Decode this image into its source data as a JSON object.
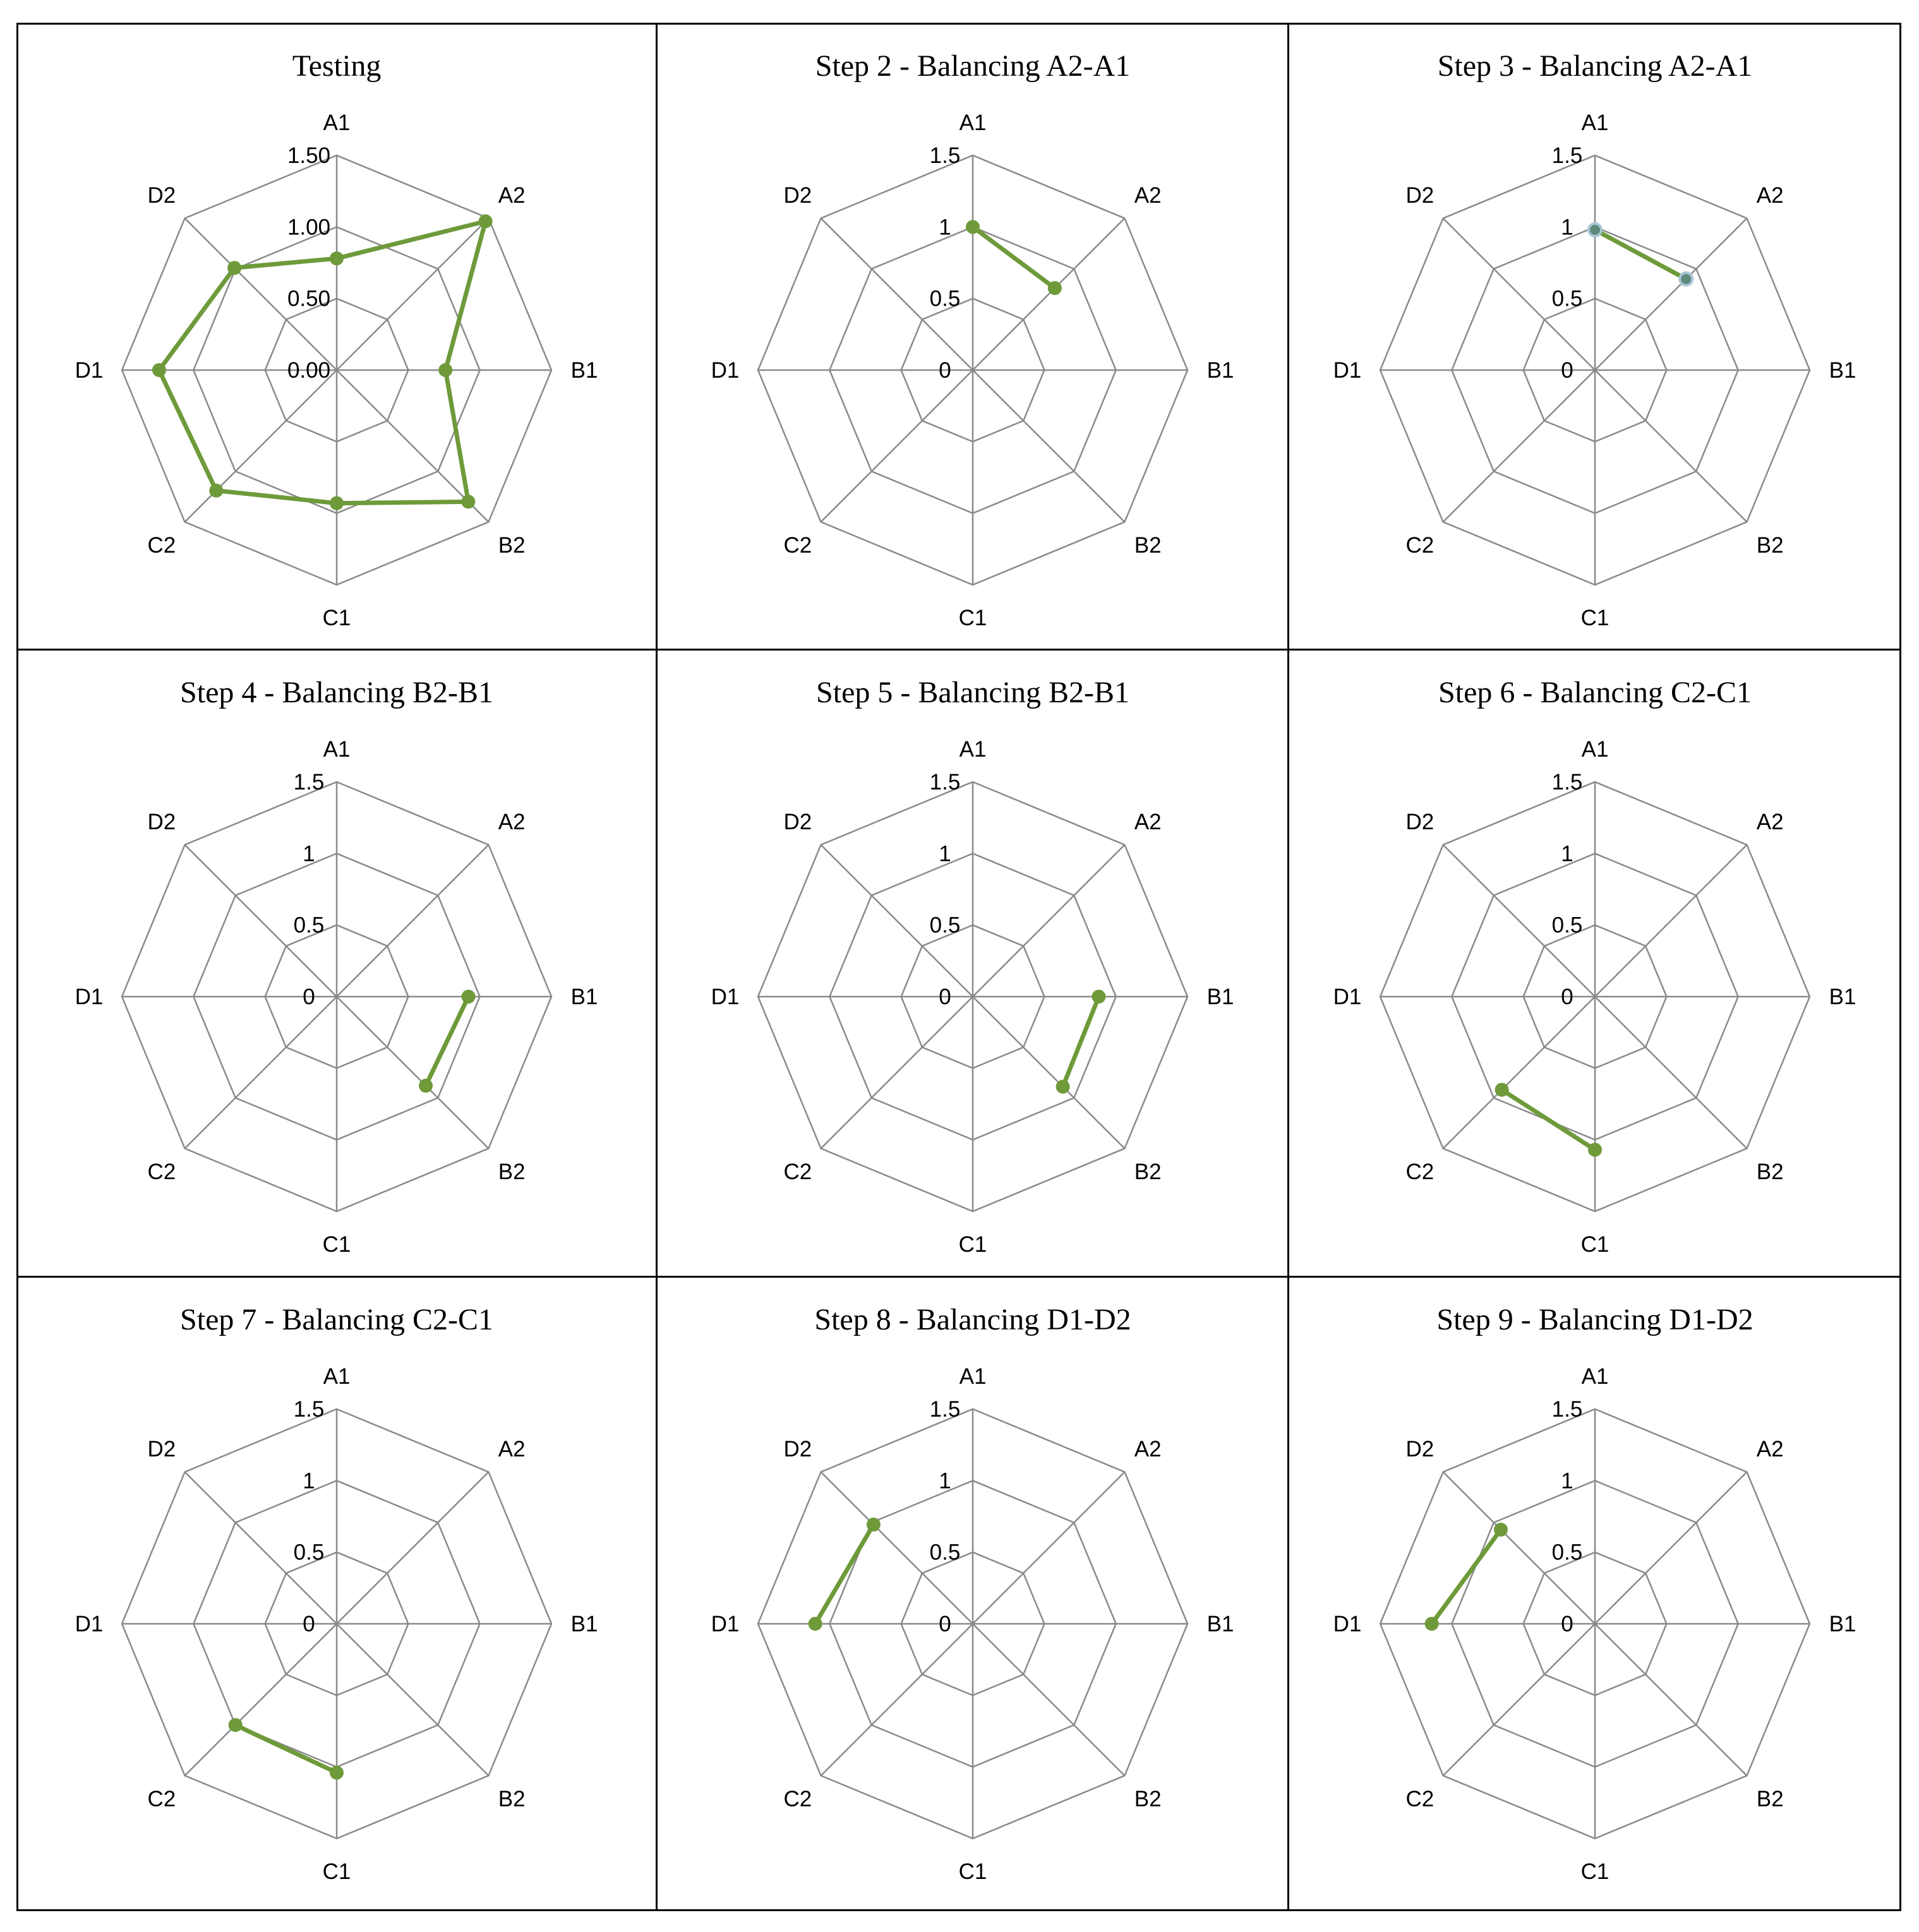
{
  "axes": [
    "A1",
    "A2",
    "B1",
    "B2",
    "C1",
    "C2",
    "D1",
    "D2"
  ],
  "colors": {
    "grid": "#8a8a8a",
    "series": "#6e9a3a",
    "marker_alt": "#5f8a7a",
    "frame": "#000000"
  },
  "chart_data": [
    {
      "type": "radar",
      "title": "Testing",
      "rmax": 1.5,
      "ticks": [
        "0.00",
        "0.50",
        "1.00",
        "1.50"
      ],
      "tick_values": [
        0,
        0.5,
        1.0,
        1.5
      ],
      "series": [
        {
          "closed": true,
          "points": [
            {
              "axis": "A1",
              "value": 0.78
            },
            {
              "axis": "A2",
              "value": 1.47
            },
            {
              "axis": "B1",
              "value": 0.76
            },
            {
              "axis": "B2",
              "value": 1.3
            },
            {
              "axis": "C1",
              "value": 0.93
            },
            {
              "axis": "C2",
              "value": 1.19
            },
            {
              "axis": "D1",
              "value": 1.24
            },
            {
              "axis": "D2",
              "value": 1.01
            }
          ]
        }
      ]
    },
    {
      "type": "radar",
      "title": "Step 2 - Balancing A2-A1",
      "rmax": 1.5,
      "ticks": [
        "0",
        "0.5",
        "1",
        "1.5"
      ],
      "tick_values": [
        0,
        0.5,
        1.0,
        1.5
      ],
      "series": [
        {
          "closed": false,
          "points": [
            {
              "axis": "A1",
              "value": 1.0
            },
            {
              "axis": "A2",
              "value": 0.81
            }
          ]
        }
      ]
    },
    {
      "type": "radar",
      "title": "Step 3 - Balancing A2-A1",
      "rmax": 1.5,
      "ticks": [
        "0",
        "0.5",
        "1",
        "1.5"
      ],
      "tick_values": [
        0,
        0.5,
        1.0,
        1.5
      ],
      "series": [
        {
          "closed": false,
          "points": [
            {
              "axis": "A1",
              "value": 0.98
            },
            {
              "axis": "A2",
              "value": 0.9
            }
          ]
        }
      ]
    },
    {
      "type": "radar",
      "title": "Step 4 - Balancing B2-B1",
      "rmax": 1.5,
      "ticks": [
        "0",
        "0.5",
        "1",
        "1.5"
      ],
      "tick_values": [
        0,
        0.5,
        1.0,
        1.5
      ],
      "series": [
        {
          "closed": false,
          "points": [
            {
              "axis": "B1",
              "value": 0.92
            },
            {
              "axis": "B2",
              "value": 0.88
            }
          ]
        }
      ]
    },
    {
      "type": "radar",
      "title": "Step 5 - Balancing B2-B1",
      "rmax": 1.5,
      "ticks": [
        "0",
        "0.5",
        "1",
        "1.5"
      ],
      "tick_values": [
        0,
        0.5,
        1.0,
        1.5
      ],
      "series": [
        {
          "closed": false,
          "points": [
            {
              "axis": "B1",
              "value": 0.88
            },
            {
              "axis": "B2",
              "value": 0.89
            }
          ]
        }
      ]
    },
    {
      "type": "radar",
      "title": "Step 6 - Balancing C2-C1",
      "rmax": 1.5,
      "ticks": [
        "0",
        "0.5",
        "1",
        "1.5"
      ],
      "tick_values": [
        0,
        0.5,
        1.0,
        1.5
      ],
      "series": [
        {
          "closed": false,
          "points": [
            {
              "axis": "C2",
              "value": 0.92
            },
            {
              "axis": "C1",
              "value": 1.07
            }
          ]
        }
      ]
    },
    {
      "type": "radar",
      "title": "Step 7 - Balancing C2-C1",
      "rmax": 1.5,
      "ticks": [
        "0",
        "0.5",
        "1",
        "1.5"
      ],
      "tick_values": [
        0,
        0.5,
        1.0,
        1.5
      ],
      "series": [
        {
          "closed": false,
          "points": [
            {
              "axis": "C2",
              "value": 1.0
            },
            {
              "axis": "C1",
              "value": 1.04
            }
          ]
        }
      ]
    },
    {
      "type": "radar",
      "title": "Step 8 - Balancing D1-D2",
      "rmax": 1.5,
      "ticks": [
        "0",
        "0.5",
        "1",
        "1.5"
      ],
      "tick_values": [
        0,
        0.5,
        1.0,
        1.5
      ],
      "series": [
        {
          "closed": false,
          "points": [
            {
              "axis": "D1",
              "value": 1.1
            },
            {
              "axis": "D2",
              "value": 0.98
            }
          ]
        }
      ]
    },
    {
      "type": "radar",
      "title": "Step 9 - Balancing D1-D2",
      "rmax": 1.5,
      "ticks": [
        "0",
        "0.5",
        "1",
        "1.5"
      ],
      "tick_values": [
        0,
        0.5,
        1.0,
        1.5
      ],
      "series": [
        {
          "closed": false,
          "points": [
            {
              "axis": "D1",
              "value": 1.14
            },
            {
              "axis": "D2",
              "value": 0.93
            }
          ]
        }
      ]
    }
  ]
}
